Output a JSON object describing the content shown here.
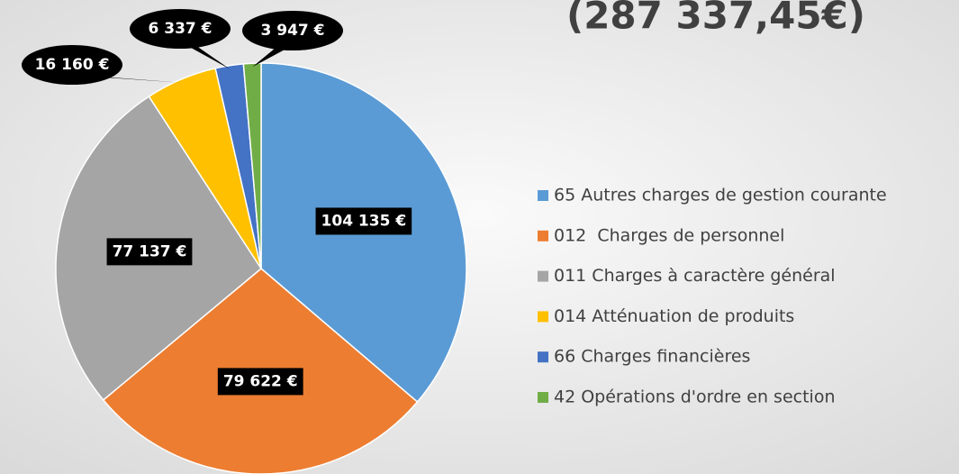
{
  "chart_data": {
    "type": "pie",
    "title": "(287 337,45€)",
    "categories": [
      "65 Autres charges de gestion courante",
      "012  Charges de personnel",
      "011 Charges à caractère général",
      "014 Atténuation de produits",
      "66 Charges financières",
      "42 Opérations d'ordre en section"
    ],
    "values": [
      104135,
      79622,
      77137,
      16160,
      6337,
      3947
    ],
    "value_labels": [
      "104 135 €",
      "79 622 €",
      "77 137 €",
      "16 160 €",
      "6 337 €",
      "3 947 €"
    ],
    "colors": [
      "#5b9bd5",
      "#ed7d31",
      "#a5a5a5",
      "#ffc000",
      "#4472c4",
      "#70ad47"
    ],
    "legend": "right"
  }
}
